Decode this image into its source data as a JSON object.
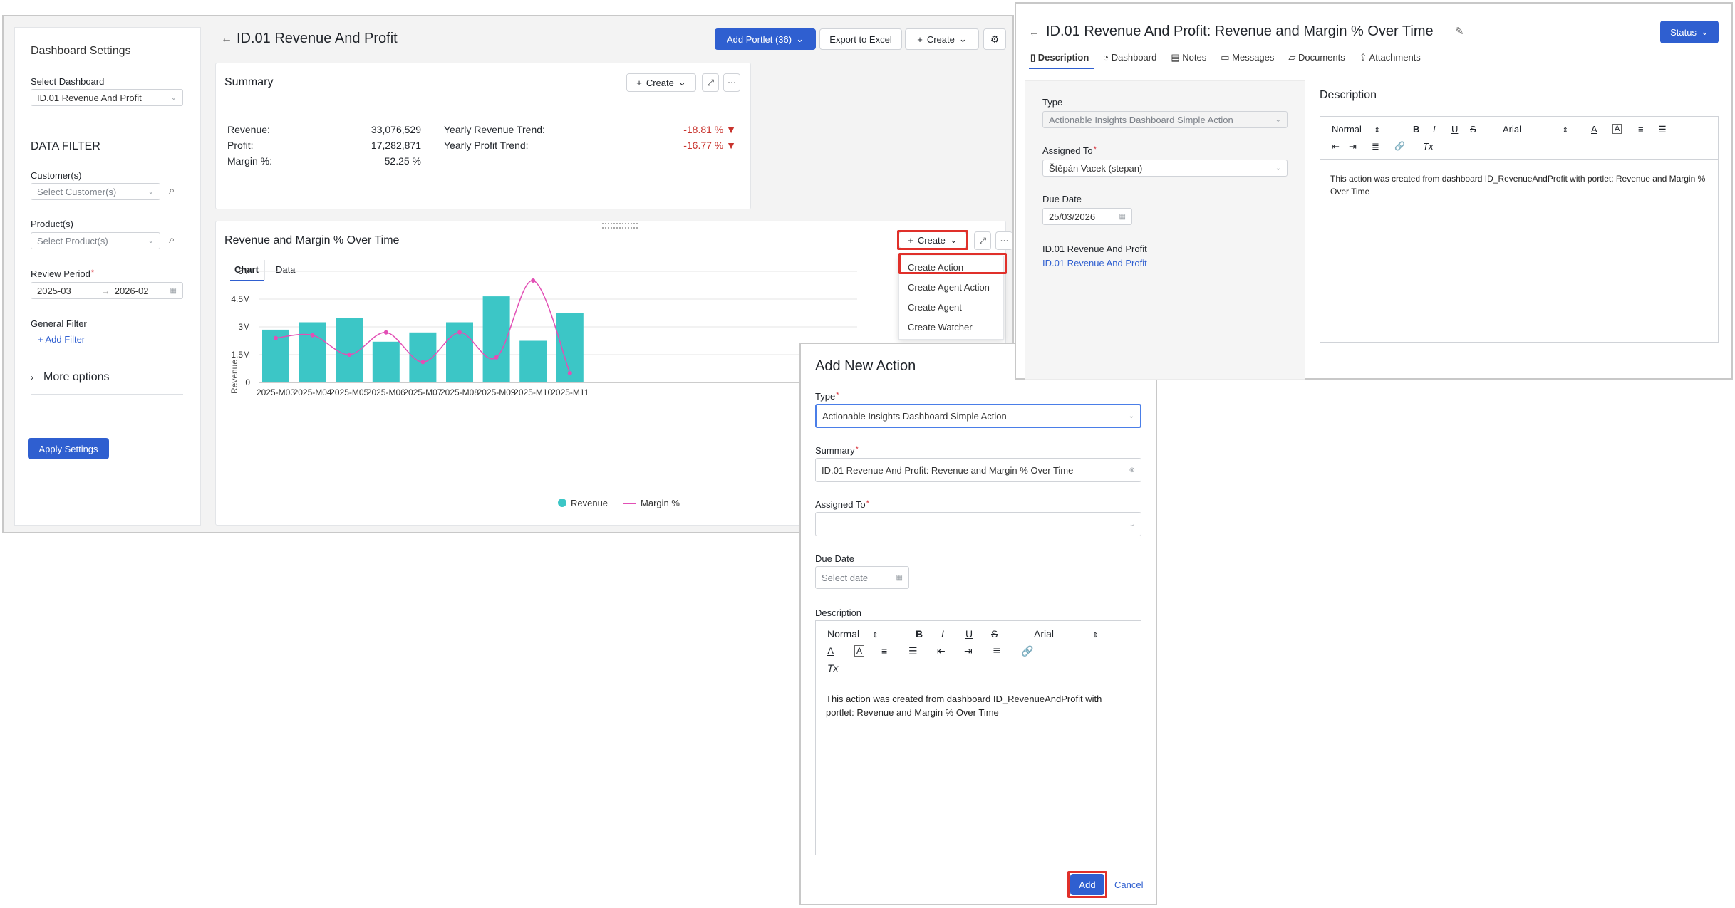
{
  "sidebar": {
    "title": "Dashboard Settings",
    "select_dashboard_label": "Select Dashboard",
    "select_dashboard_value": "ID.01 Revenue And Profit",
    "data_filter_title": "DATA FILTER",
    "customers_label": "Customer(s)",
    "customers_placeholder": "Select Customer(s)",
    "products_label": "Product(s)",
    "products_placeholder": "Select Product(s)",
    "review_period_label": "Review Period",
    "review_from": "2025-03",
    "review_to": "2026-02",
    "general_filter_label": "General Filter",
    "add_filter": "Add Filter",
    "more_options": "More options",
    "apply": "Apply Settings"
  },
  "header": {
    "title": "ID.01 Revenue And Profit",
    "add_portlet": "Add Portlet (36)",
    "export": "Export to Excel",
    "create": "Create"
  },
  "summary": {
    "title": "Summary",
    "create": "Create",
    "rows": [
      {
        "label": "Revenue:",
        "value": "33,076,529"
      },
      {
        "label": "Profit:",
        "value": "17,282,871"
      },
      {
        "label": "Margin %:",
        "value": "52.25 %"
      }
    ],
    "trends": [
      {
        "label": "Yearly Revenue Trend:",
        "value": "-18.81 %"
      },
      {
        "label": "Yearly Profit Trend:",
        "value": "-16.77 %"
      }
    ]
  },
  "chart_portlet": {
    "title": "Revenue and Margin % Over Time",
    "create": "Create",
    "tabs": [
      "Chart",
      "Data"
    ],
    "menu": [
      "Create Action",
      "Create Agent Action",
      "Create Agent",
      "Create Watcher"
    ]
  },
  "chart_data": {
    "type": "bar",
    "categories": [
      "2025-M03",
      "2025-M04",
      "2025-M05",
      "2025-M06",
      "2025-M07",
      "2025-M08",
      "2025-M09",
      "2025-M10",
      "2025-M11"
    ],
    "series": [
      {
        "name": "Revenue",
        "values": [
          2.85,
          3.25,
          3.5,
          2.2,
          2.7,
          3.25,
          4.65,
          2.25,
          3.75
        ]
      },
      {
        "name": "Margin %",
        "values": [
          2.4,
          2.55,
          1.5,
          2.7,
          1.1,
          2.7,
          1.35,
          5.5,
          0.5
        ]
      }
    ],
    "ylabel": "Revenue",
    "yticks": [
      "0",
      "1.5M",
      "3M",
      "4.5M",
      "6M"
    ],
    "ylim": [
      0,
      6
    ],
    "colors": {
      "Revenue": "#3cc6c6",
      "Margin %": "#e24fb5"
    },
    "legend": "bottom"
  },
  "dialog": {
    "title": "Add New Action",
    "type_label": "Type",
    "type_value": "Actionable Insights Dashboard Simple Action",
    "summary_label": "Summary",
    "summary_value": "ID.01 Revenue And Profit: Revenue and Margin % Over Time",
    "assigned_label": "Assigned To",
    "due_label": "Due Date",
    "due_placeholder": "Select date",
    "desc_label": "Description",
    "format": "Normal",
    "font": "Arial",
    "desc_text": "This action was created from dashboard ID_RevenueAndProfit with portlet: Revenue and Margin % Over Time",
    "add": "Add",
    "cancel": "Cancel"
  },
  "detail": {
    "title": "ID.01 Revenue And Profit: Revenue and Margin % Over Time",
    "status": "Status",
    "tabs": [
      "Description",
      "Dashboard",
      "Notes",
      "Messages",
      "Documents",
      "Attachments"
    ],
    "type_label": "Type",
    "type_value": "Actionable Insights Dashboard Simple Action",
    "assigned_label": "Assigned To",
    "assigned_value": "Štěpán Vacek (stepan)",
    "due_label": "Due Date",
    "due_value": "25/03/2026",
    "dash_label": "ID.01 Revenue And Profit",
    "dash_link": "ID.01 Revenue And Profit",
    "desc_title": "Description",
    "format": "Normal",
    "font": "Arial",
    "desc_text": "This action was created from dashboard ID_RevenueAndProfit with portlet: Revenue and Margin % Over Time"
  }
}
